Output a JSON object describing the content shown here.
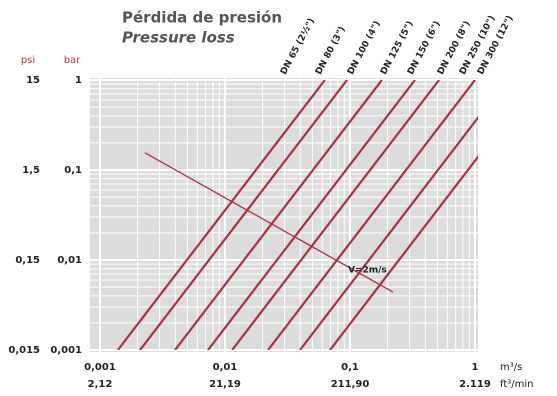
{
  "chart_data": {
    "type": "line",
    "title": "Pérdida de presión",
    "subtitle": "Pressure loss",
    "xlabel": "m³/s",
    "x2label": "ft³/min",
    "ylabel": "bar",
    "y2label": "psi",
    "xscale": "log",
    "yscale": "log",
    "grid": true,
    "xlim": [
      0.001,
      1
    ],
    "xticks": [
      {
        "value": 0.001,
        "label": "0,001"
      },
      {
        "value": 0.01,
        "label": "0,01"
      },
      {
        "value": 0.1,
        "label": "0,1"
      },
      1
    ],
    "x2lim": [
      2.119,
      2119
    ],
    "x2ticks": [
      {
        "value": 2.12,
        "label": "2,12"
      },
      {
        "value": 21.19,
        "label": "21,19"
      },
      {
        "value": 211.9,
        "label": "211,90"
      },
      {
        "value": 2119,
        "label": "2.119"
      }
    ],
    "ylim": [
      0.001,
      1
    ],
    "yticks": [
      {
        "value": 0.001,
        "label": "0,001"
      },
      {
        "value": 0.01,
        "label": "0,01"
      },
      {
        "value": 0.1,
        "label": "0,1"
      },
      1
    ],
    "y2lim": [
      0.015,
      15
    ],
    "y2ticks": [
      {
        "value": 0.015,
        "label": "0,015"
      },
      {
        "value": 0.15,
        "label": "0,15"
      },
      {
        "value": 1.5,
        "label": "1,5"
      },
      15
    ],
    "series": [
      {
        "name": "DN 65 (2½\")",
        "color": "#a8323f",
        "x": [
          0.00139,
          0.063
        ],
        "values": [
          0.001,
          1
        ]
      },
      {
        "name": "DN 80 (3\")",
        "color": "#a8323f",
        "x": [
          0.00209,
          0.0947
        ],
        "values": [
          0.001,
          1
        ]
      },
      {
        "name": "DN 100 (4\")",
        "color": "#a8323f",
        "x": [
          0.00398,
          0.18
        ],
        "values": [
          0.001,
          1
        ]
      },
      {
        "name": "DN 125 (5\")",
        "color": "#a8323f",
        "x": [
          0.00731,
          0.331
        ],
        "values": [
          0.001,
          1
        ]
      },
      {
        "name": "DN 150 (6\")",
        "color": "#a8323f",
        "x": [
          0.0114,
          0.516
        ],
        "values": [
          0.001,
          1
        ]
      },
      {
        "name": "DN 200 (8\")",
        "color": "#a8323f",
        "x": [
          0.0221,
          1.0
        ],
        "values": [
          0.001,
          1
        ]
      },
      {
        "name": "DN 250 (10\")",
        "color": "#a8323f",
        "x": [
          0.0398,
          1.8
        ],
        "values": [
          0.001,
          1
        ]
      },
      {
        "name": "DN 300 (12\")",
        "color": "#a8323f",
        "x": [
          0.0692,
          3.13
        ],
        "values": [
          0.001,
          1
        ]
      },
      {
        "name": "V=2m/s",
        "color": "#a8323f",
        "x": [
          0.00229,
          0.221
        ],
        "values": [
          0.155,
          0.0044
        ]
      }
    ]
  }
}
